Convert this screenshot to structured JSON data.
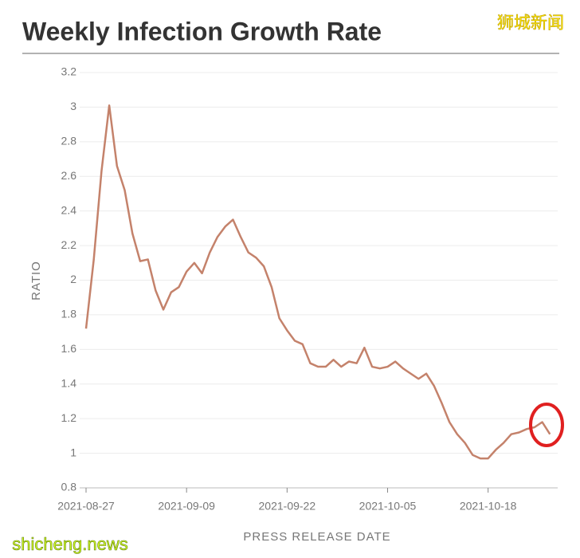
{
  "chart_data": {
    "type": "line",
    "title": "Weekly Infection Growth Rate",
    "y_label": "RATIO",
    "x_label": "PRESS RELEASE DATE",
    "x": [
      "2021-08-27",
      "2021-08-28",
      "2021-08-29",
      "2021-08-30",
      "2021-08-31",
      "2021-09-01",
      "2021-09-02",
      "2021-09-03",
      "2021-09-04",
      "2021-09-05",
      "2021-09-06",
      "2021-09-07",
      "2021-09-08",
      "2021-09-09",
      "2021-09-10",
      "2021-09-11",
      "2021-09-12",
      "2021-09-13",
      "2021-09-14",
      "2021-09-15",
      "2021-09-16",
      "2021-09-17",
      "2021-09-18",
      "2021-09-19",
      "2021-09-20",
      "2021-09-21",
      "2021-09-22",
      "2021-09-23",
      "2021-09-24",
      "2021-09-25",
      "2021-09-26",
      "2021-09-27",
      "2021-09-28",
      "2021-09-29",
      "2021-09-30",
      "2021-10-01",
      "2021-10-02",
      "2021-10-03",
      "2021-10-04",
      "2021-10-05",
      "2021-10-06",
      "2021-10-07",
      "2021-10-08",
      "2021-10-09",
      "2021-10-10",
      "2021-10-11",
      "2021-10-12",
      "2021-10-13",
      "2021-10-14",
      "2021-10-15",
      "2021-10-16",
      "2021-10-17",
      "2021-10-18",
      "2021-10-19",
      "2021-10-20",
      "2021-10-21",
      "2021-10-22",
      "2021-10-23",
      "2021-10-24",
      "2021-10-25",
      "2021-10-26"
    ],
    "values": [
      1.72,
      2.12,
      2.63,
      3.01,
      2.66,
      2.52,
      2.27,
      2.11,
      2.12,
      1.94,
      1.83,
      1.93,
      1.96,
      2.05,
      2.1,
      2.04,
      2.16,
      2.25,
      2.31,
      2.35,
      2.25,
      2.16,
      2.13,
      2.08,
      1.96,
      1.78,
      1.71,
      1.65,
      1.63,
      1.52,
      1.5,
      1.5,
      1.54,
      1.5,
      1.53,
      1.52,
      1.61,
      1.5,
      1.49,
      1.5,
      1.53,
      1.49,
      1.46,
      1.43,
      1.46,
      1.39,
      1.29,
      1.18,
      1.11,
      1.06,
      0.99,
      0.97,
      0.97,
      1.02,
      1.06,
      1.11,
      1.12,
      1.14,
      1.15,
      1.18,
      1.11
    ],
    "color": "#c4826b",
    "xlim": [
      "2021-08-26",
      "2021-10-27"
    ],
    "xticks": [
      "2021-08-27",
      "2021-09-09",
      "2021-09-22",
      "2021-10-05",
      "2021-10-18"
    ],
    "ylim": [
      0.8,
      3.2
    ],
    "yticks": [
      3.2,
      3,
      2.8,
      2.6,
      2.4,
      2.2,
      2,
      1.8,
      1.6,
      1.4,
      1.2,
      1,
      0.8
    ],
    "grid": true
  },
  "watermarks": [
    "狮城新闻",
    "shicheng.news"
  ]
}
